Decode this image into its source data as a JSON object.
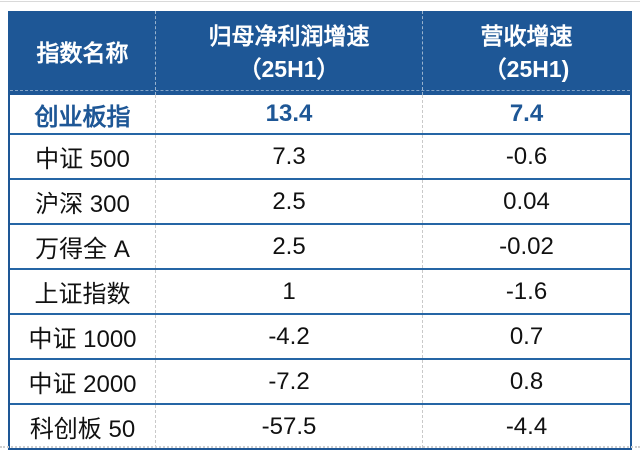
{
  "accent_color": "#1e5796",
  "grid_dash_color": "#c9c9c9",
  "highlight_text_color": "#1e5796",
  "table": {
    "headers": {
      "col1": "指数名称",
      "col2_line1": "归母净利润增速",
      "col2_line2": "（25H1）",
      "col3_line1": "营收增速",
      "col3_line2": "（25H1)"
    },
    "rows": [
      {
        "name": "创业板指",
        "profit": "13.4",
        "revenue": "7.4",
        "highlight": true
      },
      {
        "name": "中证 500",
        "profit": "7.3",
        "revenue": "-0.6",
        "highlight": false
      },
      {
        "name": "沪深 300",
        "profit": "2.5",
        "revenue": "0.04",
        "highlight": false
      },
      {
        "name": "万得全 A",
        "profit": "2.5",
        "revenue": "-0.02",
        "highlight": false
      },
      {
        "name": "上证指数",
        "profit": "1",
        "revenue": "-1.6",
        "highlight": false
      },
      {
        "name": "中证 1000",
        "profit": "-4.2",
        "revenue": "0.7",
        "highlight": false
      },
      {
        "name": "中证 2000",
        "profit": "-7.2",
        "revenue": "0.8",
        "highlight": false
      },
      {
        "name": "科创板 50",
        "profit": "-57.5",
        "revenue": "-4.4",
        "highlight": false
      }
    ]
  },
  "chart_data": {
    "type": "table",
    "title": "",
    "columns": [
      "指数名称",
      "归母净利润增速（25H1）",
      "营收增速（25H1)"
    ],
    "rows": [
      [
        "创业板指",
        13.4,
        7.4
      ],
      [
        "中证 500",
        7.3,
        -0.6
      ],
      [
        "沪深 300",
        2.5,
        0.04
      ],
      [
        "万得全 A",
        2.5,
        -0.02
      ],
      [
        "上证指数",
        1,
        -1.6
      ],
      [
        "中证 1000",
        -4.2,
        0.7
      ],
      [
        "中证 2000",
        -7.2,
        0.8
      ],
      [
        "科创板 50",
        -57.5,
        -4.4
      ]
    ],
    "notes": "First data row (创业板指) is emphasized in bold navy; header row has navy background with white bold text; dashed column separators; solid blue row separators."
  }
}
